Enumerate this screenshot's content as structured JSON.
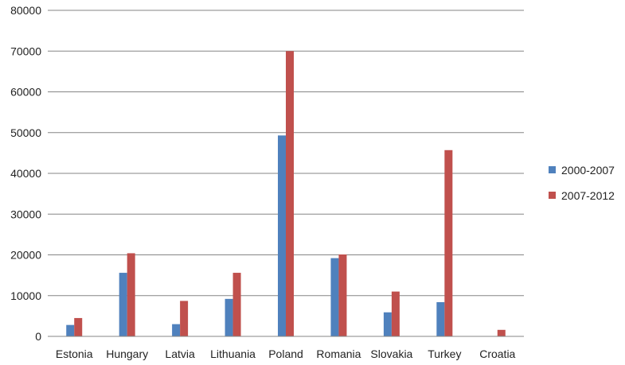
{
  "chart_data": {
    "type": "bar",
    "categories": [
      "Estonia",
      "Hungary",
      "Latvia",
      "Lithuania",
      "Poland",
      "Romania",
      "Slovakia",
      "Turkey",
      "Croatia"
    ],
    "series": [
      {
        "name": "2000-2007",
        "color": "#4f81bd",
        "values": [
          2800,
          15600,
          3000,
          9200,
          49300,
          19200,
          5900,
          8400,
          0
        ]
      },
      {
        "name": "2007-2012",
        "color": "#c0504d",
        "values": [
          4500,
          20400,
          8700,
          15600,
          70000,
          20100,
          11000,
          45700,
          1600
        ]
      }
    ],
    "y_ticks": [
      "0",
      "10000",
      "20000",
      "30000",
      "40000",
      "50000",
      "60000",
      "70000",
      "80000"
    ],
    "ylim": [
      0,
      80000
    ],
    "grid": true,
    "legend_position": "right"
  }
}
